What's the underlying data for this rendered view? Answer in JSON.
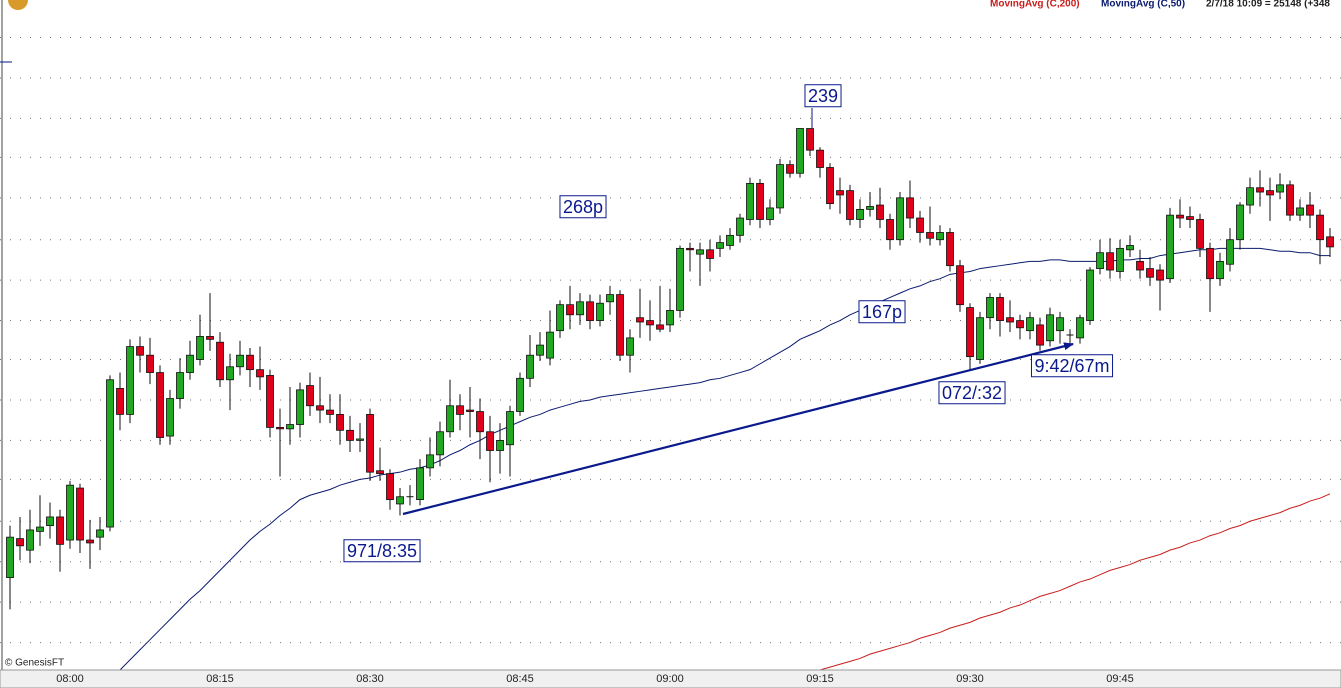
{
  "chart_data": {
    "type": "candlestick",
    "status": "2/7/18 10:09 = 25148 (+348",
    "credit": "© GenesisFT",
    "categories": [
      null,
      null,
      null,
      null,
      null,
      null,
      "08:00",
      null,
      null,
      null,
      null,
      null,
      null,
      null,
      null,
      null,
      null,
      null,
      null,
      null,
      null,
      "08:15",
      null,
      null,
      null,
      null,
      null,
      null,
      null,
      null,
      null,
      null,
      null,
      null,
      null,
      null,
      "08:30",
      null,
      null,
      null,
      null,
      null,
      null,
      null,
      null,
      null,
      null,
      null,
      null,
      null,
      null,
      "08:45",
      null,
      null,
      null,
      null,
      null,
      null,
      null,
      null,
      null,
      null,
      null,
      null,
      null,
      null,
      "09:00",
      null,
      null,
      null,
      null,
      null,
      null,
      null,
      null,
      null,
      null,
      null,
      null,
      null,
      null,
      "09:15",
      null,
      null,
      null,
      null,
      null,
      null,
      null,
      null,
      null,
      null,
      null,
      null,
      null,
      null,
      "09:30",
      null,
      null,
      null,
      null,
      null,
      null,
      null,
      null,
      null,
      null,
      null,
      null,
      null,
      null,
      "09:45",
      null,
      null,
      null,
      null,
      null,
      null,
      null,
      null,
      null,
      null,
      null,
      null,
      null,
      null,
      null,
      null,
      null,
      null,
      null,
      null,
      null
    ],
    "open": [
      24928,
      24955,
      24947,
      24960,
      24964,
      24970,
      24954,
      24990,
      24954,
      24956,
      24963,
      25059,
      25041,
      25088,
      25082,
      25070,
      25026,
      25052,
      25070,
      25079,
      25095,
      25091,
      25065,
      25074,
      25082,
      25072,
      25068,
      25032,
      25031,
      25034,
      25061,
      25047,
      25044,
      25041,
      25030,
      25023,
      25041,
      25002,
      25000,
      24979,
      24984,
      24982,
      25004,
      25013,
      25029,
      25047,
      25044,
      25043,
      25029,
      25016,
      25020,
      25043,
      25066,
      25082,
      25080,
      25099,
      25117,
      25110,
      25119,
      25106,
      25119,
      25124,
      25082,
      25108,
      25106,
      25103,
      25103,
      25113,
      25156,
      25152,
      25155,
      25156,
      25158,
      25165,
      25176,
      25201,
      25176,
      25184,
      25214,
      25208,
      25239,
      25224,
      25212,
      25196,
      25196,
      25176,
      25183,
      25186,
      25176,
      25162,
      25191,
      25177,
      25167,
      25162,
      25167,
      25144,
      25115,
      25079,
      25108,
      25122,
      25108,
      25106,
      25099,
      25103,
      25092,
      25099,
      25096,
      25094,
      25106,
      25142,
      25153,
      25140,
      25155,
      25147,
      25142,
      25141,
      25135,
      25179,
      25178,
      25176,
      25156,
      25135,
      25145,
      25162,
      25186,
      25198,
      25196,
      25195,
      25200,
      25179,
      25186,
      25179,
      25164
    ],
    "high": [
      24964,
      24970,
      24975,
      24985,
      24980,
      24975,
      24995,
      24993,
      24968,
      24970,
      25068,
      25070,
      25093,
      25095,
      25094,
      25075,
      25058,
      25080,
      25092,
      25110,
      25125,
      25098,
      25083,
      25092,
      25087,
      25088,
      25072,
      25045,
      25060,
      25063,
      25070,
      25067,
      25055,
      25055,
      25040,
      25035,
      25045,
      25018,
      25003,
      24990,
      24992,
      25010,
      25025,
      25036,
      25065,
      25055,
      25060,
      25052,
      25040,
      25035,
      25047,
      25070,
      25096,
      25098,
      25113,
      25120,
      25130,
      25125,
      25124,
      25124,
      25130,
      25127,
      25100,
      25128,
      25120,
      25130,
      25128,
      25158,
      25160,
      25160,
      25162,
      25165,
      25170,
      25180,
      25205,
      25204,
      25190,
      25218,
      25217,
      25239,
      25239,
      25226,
      25215,
      25205,
      25200,
      25190,
      25195,
      25198,
      25180,
      25195,
      25203,
      25182,
      25185,
      25172,
      25170,
      25148,
      25118,
      25112,
      25125,
      25125,
      25120,
      25110,
      25112,
      25108,
      25115,
      25112,
      25100,
      25110,
      25143,
      25162,
      25163,
      25162,
      25165,
      25155,
      25150,
      25145,
      25184,
      25190,
      25185,
      25180,
      25160,
      25153,
      25170,
      25188,
      25205,
      25210,
      25205,
      25208,
      25203,
      25190,
      25195,
      25183,
      25170
    ],
    "low": [
      24906,
      24940,
      24938,
      24950,
      24955,
      24932,
      24948,
      24945,
      24934,
      24947,
      24960,
      25030,
      25035,
      25070,
      25062,
      25020,
      25020,
      25045,
      25065,
      25075,
      25085,
      25060,
      25044,
      25068,
      25060,
      25058,
      25025,
      24998,
      25020,
      25025,
      25040,
      25035,
      25035,
      25020,
      25015,
      25015,
      24995,
      24995,
      24975,
      24971,
      24978,
      24978,
      24998,
      25005,
      25025,
      25030,
      25025,
      25010,
      24994,
      25000,
      24998,
      25040,
      25060,
      25078,
      25075,
      25094,
      25100,
      25103,
      25100,
      25102,
      25110,
      25078,
      25070,
      25094,
      25092,
      25098,
      25098,
      25108,
      25140,
      25130,
      25140,
      25150,
      25155,
      25160,
      25172,
      25170,
      25172,
      25180,
      25205,
      25205,
      25220,
      25205,
      25183,
      25180,
      25172,
      25170,
      25178,
      25170,
      25155,
      25158,
      25170,
      25160,
      25158,
      25158,
      25140,
      25112,
      25072,
      25076,
      25100,
      25095,
      25098,
      25093,
      25093,
      25085,
      25088,
      25090,
      25090,
      25090,
      25103,
      25138,
      25135,
      25135,
      25150,
      25135,
      25130,
      25113,
      25132,
      25170,
      25170,
      25150,
      25112,
      25130,
      25140,
      25155,
      25180,
      25185,
      25175,
      25190,
      25175,
      25175,
      25170,
      25145,
      25150
    ],
    "close": [
      24956,
      24950,
      24961,
      24963,
      24970,
      24951,
      24992,
      24954,
      24952,
      24961,
      25065,
      25041,
      25088,
      25082,
      25070,
      25025,
      25052,
      25070,
      25082,
      25095,
      25093,
      25065,
      25074,
      25082,
      25072,
      25067,
      25032,
      25031,
      25034,
      25058,
      25047,
      25044,
      25041,
      25030,
      25023,
      25024,
      25001,
      25000,
      24982,
      24984,
      24984,
      25004,
      25013,
      25029,
      25047,
      25041,
      25043,
      25029,
      25016,
      25023,
      25043,
      25066,
      25082,
      25089,
      25098,
      25117,
      25110,
      25119,
      25106,
      25118,
      25124,
      25082,
      25094,
      25105,
      25103,
      25100,
      25113,
      25156,
      25155,
      25155,
      25149,
      25160,
      25165,
      25177,
      25201,
      25176,
      25184,
      25214,
      25208,
      25239,
      25224,
      25212,
      25187,
      25193,
      25176,
      25183,
      25185,
      25176,
      25162,
      25191,
      25177,
      25167,
      25163,
      25167,
      25144,
      25117,
      25081,
      25108,
      25122,
      25106,
      25105,
      25101,
      25108,
      25089,
      25110,
      25108,
      25096,
      25108,
      25141,
      25153,
      25141,
      25156,
      25158,
      25141,
      25136,
      25134,
      25179,
      25177,
      25176,
      25156,
      25135,
      25147,
      25162,
      25186,
      25198,
      25195,
      25193,
      25200,
      25179,
      25184,
      25179,
      25162,
      25157
    ],
    "up_color": "#20a820",
    "down_color": "#e0001b",
    "series": [
      {
        "name": "MovingAvg (C,200)",
        "color": "#c81e1e",
        "values": [
          null,
          null,
          null,
          null,
          null,
          null,
          null,
          null,
          null,
          null,
          null,
          null,
          null,
          null,
          null,
          null,
          null,
          null,
          null,
          null,
          null,
          null,
          null,
          null,
          null,
          null,
          null,
          null,
          null,
          null,
          null,
          null,
          null,
          null,
          null,
          null,
          null,
          null,
          null,
          null,
          null,
          null,
          null,
          null,
          null,
          null,
          null,
          null,
          null,
          null,
          null,
          null,
          null,
          null,
          null,
          null,
          null,
          null,
          null,
          null,
          null,
          null,
          null,
          null,
          null,
          null,
          null,
          null,
          null,
          null,
          null,
          null,
          null,
          null,
          null,
          null,
          null,
          null,
          null,
          null,
          null,
          24864,
          24866,
          24868,
          24870,
          24872,
          24875,
          24877,
          24879,
          24881,
          24883,
          24886,
          24888,
          24890,
          24893,
          24895,
          24897,
          24900,
          24902,
          24904,
          24907,
          24909,
          24912,
          24915,
          24917,
          24919,
          24922,
          24925,
          24927,
          24930,
          24933,
          24935,
          24937,
          24940,
          24942,
          24944,
          24947,
          24949,
          24952,
          24954,
          24957,
          24959,
          24962,
          24964,
          24967,
          24969,
          24971,
          24973,
          24976,
          24978,
          24981,
          24983,
          24986
        ]
      },
      {
        "name": "MovingAvg (C,50)",
        "color": "#0a1a6e",
        "values": [
          null,
          null,
          null,
          null,
          null,
          null,
          null,
          null,
          null,
          null,
          null,
          24864,
          24871,
          24878,
          24885,
          24892,
          24899,
          24906,
          24913,
          24919,
          24926,
          24933,
          24940,
          24947,
          24954,
          24960,
          24965,
          24971,
          24976,
          24982,
          24985,
          24987,
          24989,
          24992,
          24994,
          24996,
          24997,
          24999,
          25000,
          25001,
          25003,
          25004,
          25006,
          25009,
          25013,
          25016,
          25020,
          25023,
          25027,
          25030,
          25033,
          25036,
          25039,
          25041,
          25044,
          25046,
          25048,
          25050,
          25051,
          25053,
          25054,
          25055,
          25056,
          25057,
          25058,
          25059,
          25060,
          25061,
          25062,
          25063,
          25065,
          25066,
          25068,
          25070,
          25072,
          25076,
          25080,
          25084,
          25088,
          25093,
          25096,
          25099,
          25103,
          25106,
          25110,
          25113,
          25116,
          25119,
          25122,
          25125,
          25128,
          25130,
          25133,
          25135,
          25138,
          25139,
          25140,
          25142,
          25143,
          25144,
          25145,
          25146,
          25147,
          25147,
          25148,
          25148,
          25147,
          25147,
          25147,
          25147,
          25147,
          25148,
          25148,
          25149,
          25149,
          25151,
          25152,
          25153,
          25154,
          25155,
          25155,
          25156,
          25156,
          25156,
          25156,
          25156,
          25155,
          25154,
          25154,
          25153,
          25153,
          25151,
          25151
        ]
      }
    ],
    "ylim": [
      24864,
      25328
    ],
    "grid": true,
    "ygrid": [
      25302,
      25274,
      25246,
      25219,
      25191,
      25162,
      25134,
      25106,
      25079,
      25051,
      25023,
      24996,
      24967,
      24939,
      24911,
      24883
    ],
    "annotations": [
      "239",
      "268p",
      "167p",
      "072/:32",
      "9:42/67m",
      "971/8:35"
    ]
  }
}
